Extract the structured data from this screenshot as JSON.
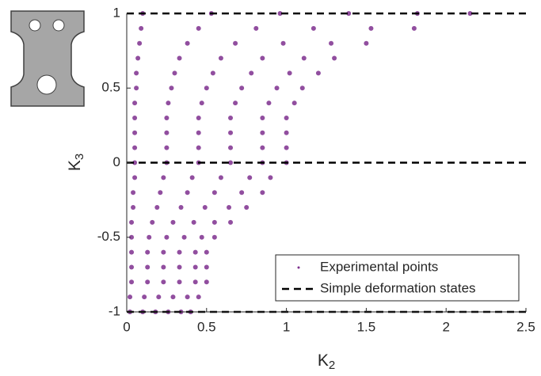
{
  "chart_data": {
    "type": "scatter",
    "xlabel": {
      "text": "K",
      "subscript": "2"
    },
    "ylabel": {
      "text": "K",
      "subscript": "3"
    },
    "xlim": [
      0,
      2.5
    ],
    "ylim": [
      -1,
      1
    ],
    "xticks": [
      0,
      0.5,
      1,
      1.5,
      2,
      2.5
    ],
    "yticks": [
      -1,
      -0.5,
      0,
      0.5,
      1
    ],
    "legend": "lower right",
    "series": [
      {
        "name": "Experimental points",
        "color": "#7e2f8e",
        "x": [
          0.02,
          0.1,
          0.18,
          0.26,
          0.34,
          0.4,
          0.02,
          0.11,
          0.2,
          0.29,
          0.38,
          0.45,
          0.03,
          0.13,
          0.23,
          0.33,
          0.43,
          0.5,
          0.03,
          0.13,
          0.23,
          0.33,
          0.43,
          0.5,
          0.03,
          0.13,
          0.23,
          0.33,
          0.43,
          0.5,
          0.03,
          0.14,
          0.25,
          0.36,
          0.47,
          0.55,
          0.03,
          0.16,
          0.29,
          0.42,
          0.55,
          0.65,
          0.04,
          0.19,
          0.34,
          0.49,
          0.64,
          0.75,
          0.04,
          0.21,
          0.38,
          0.55,
          0.72,
          0.85,
          0.05,
          0.23,
          0.41,
          0.59,
          0.77,
          0.9,
          0.05,
          0.25,
          0.45,
          0.65,
          0.85,
          1.0,
          0.05,
          0.25,
          0.45,
          0.65,
          0.85,
          1.0,
          0.05,
          0.25,
          0.45,
          0.65,
          0.85,
          1.0,
          0.05,
          0.25,
          0.45,
          0.65,
          0.85,
          1.0,
          0.05,
          0.26,
          0.47,
          0.68,
          0.89,
          1.05,
          0.06,
          0.28,
          0.5,
          0.72,
          0.94,
          1.1,
          0.06,
          0.3,
          0.54,
          0.78,
          1.02,
          1.2,
          0.07,
          0.33,
          0.59,
          0.85,
          1.11,
          1.3,
          0.08,
          0.38,
          0.68,
          0.98,
          1.28,
          1.5,
          0.09,
          0.45,
          0.81,
          1.17,
          1.53,
          1.8,
          0.1,
          0.53,
          0.96,
          1.39,
          1.82,
          2.15
        ],
        "values": [
          -1,
          -1,
          -1,
          -1,
          -1,
          -1,
          -0.9,
          -0.9,
          -0.9,
          -0.9,
          -0.9,
          -0.9,
          -0.8,
          -0.8,
          -0.8,
          -0.8,
          -0.8,
          -0.8,
          -0.7,
          -0.7,
          -0.7,
          -0.7,
          -0.7,
          -0.7,
          -0.6,
          -0.6,
          -0.6,
          -0.6,
          -0.6,
          -0.6,
          -0.5,
          -0.5,
          -0.5,
          -0.5,
          -0.5,
          -0.5,
          -0.4,
          -0.4,
          -0.4,
          -0.4,
          -0.4,
          -0.4,
          -0.3,
          -0.3,
          -0.3,
          -0.3,
          -0.3,
          -0.3,
          -0.2,
          -0.2,
          -0.2,
          -0.2,
          -0.2,
          -0.2,
          -0.1,
          -0.1,
          -0.1,
          -0.1,
          -0.1,
          -0.1,
          0,
          0,
          0,
          0,
          0,
          0,
          0.1,
          0.1,
          0.1,
          0.1,
          0.1,
          0.1,
          0.2,
          0.2,
          0.2,
          0.2,
          0.2,
          0.2,
          0.3,
          0.3,
          0.3,
          0.3,
          0.3,
          0.3,
          0.4,
          0.4,
          0.4,
          0.4,
          0.4,
          0.4,
          0.5,
          0.5,
          0.5,
          0.5,
          0.5,
          0.5,
          0.6,
          0.6,
          0.6,
          0.6,
          0.6,
          0.6,
          0.7,
          0.7,
          0.7,
          0.7,
          0.7,
          0.7,
          0.8,
          0.8,
          0.8,
          0.8,
          0.8,
          0.8,
          0.9,
          0.9,
          0.9,
          0.9,
          0.9,
          0.9,
          1,
          1,
          1,
          1,
          1,
          1
        ]
      },
      {
        "name": "Simple deformation states",
        "color": "#000000",
        "dashed": true,
        "x": [
          0,
          2.5
        ],
        "levels": [
          1,
          0,
          -1
        ]
      }
    ]
  }
}
